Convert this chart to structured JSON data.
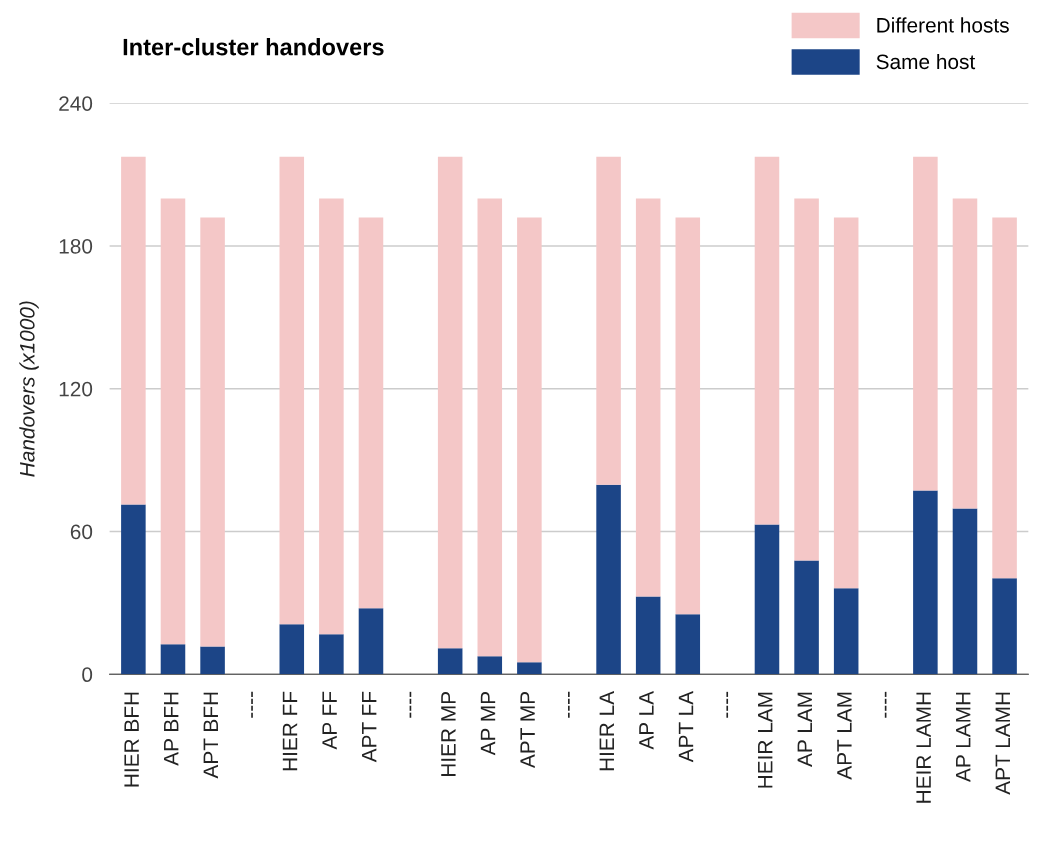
{
  "chart_data": {
    "type": "bar",
    "title": "Inter-cluster handovers",
    "ylabel": "Handovers (x1000)",
    "stacked": true,
    "categories": [
      "HIER BFH",
      "AP BFH",
      "APT BFH",
      "----",
      "HIER FF",
      "AP FF",
      "APT FF",
      "----",
      "HIER MP",
      "AP MP",
      "APT MP",
      "----",
      "HIER LA",
      "AP LA",
      "APT LA",
      "----",
      "HEIR LAM",
      "AP LAM",
      "APT LAM",
      "----",
      "HEIR LAMH",
      "AP LAMH",
      "APT LAMH"
    ],
    "series": [
      {
        "name": "Same host",
        "color": "#1c4587",
        "values": [
          71.3,
          12.6,
          11.7,
          null,
          21.0,
          16.8,
          27.7,
          null,
          10.9,
          7.6,
          5.0,
          null,
          79.7,
          32.7,
          25.2,
          null,
          62.9,
          47.8,
          36.1,
          null,
          77.2,
          69.7,
          40.3
        ]
      },
      {
        "name": "Different hosts",
        "color": "#f4c7c7",
        "values": [
          146.2,
          187.4,
          180.3,
          null,
          196.5,
          183.2,
          164.3,
          null,
          206.6,
          192.4,
          187.0,
          null,
          137.8,
          167.3,
          166.8,
          null,
          154.6,
          152.2,
          155.9,
          null,
          140.3,
          130.3,
          151.7
        ]
      }
    ],
    "ylim": [
      0,
      240
    ],
    "yticks": [
      0,
      60,
      120,
      180,
      240
    ],
    "grid": "y",
    "legend": "top right"
  }
}
